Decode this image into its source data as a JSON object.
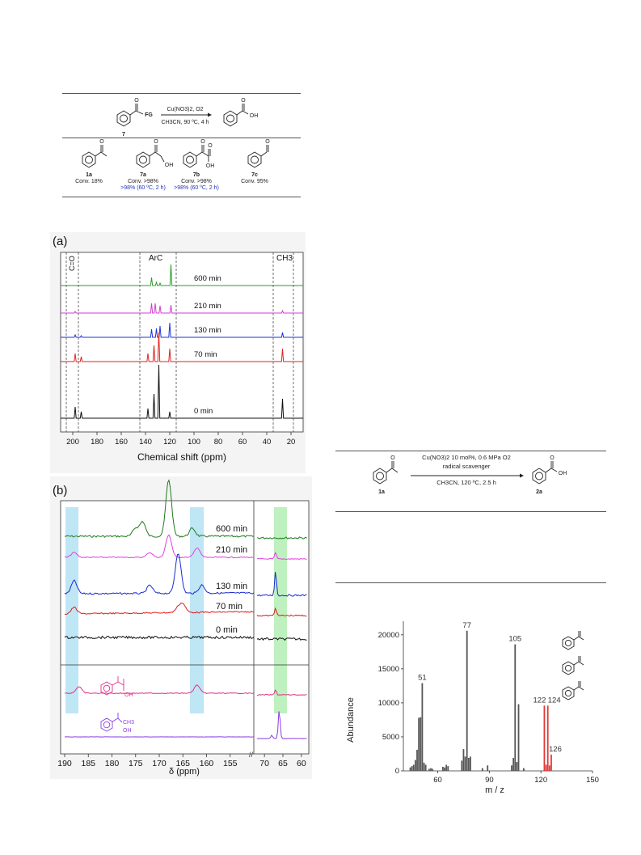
{
  "scheme1": {
    "reactant_label": "7",
    "fg": "FG",
    "reagents_top": "Cu(NO3)2, O2",
    "conditions": "CH3CN, 90 ºC, 4 h",
    "product_group": "OH",
    "compounds": [
      {
        "id": "1a",
        "conv": "Conv. 18%",
        "note": ""
      },
      {
        "id": "7a",
        "conv": "Conv. >98%",
        "note": ">98% (60 ºC, 2 h)"
      },
      {
        "id": "7b",
        "conv": "Conv. >98%",
        "note": ">98% (60 ºC, 2 h)"
      },
      {
        "id": "7c",
        "conv": "Conv. 95%",
        "note": ""
      }
    ],
    "substituents": [
      "OH",
      "OH",
      "O"
    ]
  },
  "scheme2": {
    "reactant_label": "1a",
    "product_label": "2a",
    "reagents_top": "Cu(NO3)2 10 mol%, 0.6 MPa O2",
    "reagents_mid": "radical scavenger",
    "conditions": "CH3CN, 120 ºC, 2.5 h",
    "product_group": "OH"
  },
  "panel_a": {
    "label": "(a)",
    "region_labels": [
      "C=O",
      "ArC",
      "CH3"
    ],
    "trace_labels": [
      "600 min",
      "210 min",
      "130 min",
      "70 min",
      "0 min"
    ],
    "colors": [
      "#2a9d2a",
      "#d23fd2",
      "#2233d9",
      "#e02222",
      "#111111"
    ],
    "x_ticks": [
      "200",
      "180",
      "160",
      "140",
      "120",
      "100",
      "80",
      "60",
      "40",
      "20"
    ],
    "xlabel": "Chemical shift (ppm)"
  },
  "panel_b": {
    "label": "(b)",
    "trace_labels": [
      "600 min",
      "210 min",
      "130 min",
      "70 min",
      "0 min"
    ],
    "colors": [
      "#1f7a1f",
      "#e040e0",
      "#1a2bd0",
      "#e01a1a",
      "#111111",
      "#e0308a",
      "#8a3de0"
    ],
    "x_ticks": [
      "190",
      "185",
      "180",
      "175",
      "170",
      "165",
      "160",
      "155",
      "70",
      "65",
      "60"
    ],
    "xlabel": "δ (ppm)",
    "ref_labels": [
      "OH",
      "OH",
      "CH3"
    ],
    "highlight_colors": [
      "#bfe6f5",
      "#bff0bf"
    ]
  },
  "chart_data": {
    "type": "bar",
    "xlabel": "m / z",
    "ylabel": "Abundance",
    "xlim": [
      40,
      150
    ],
    "ylim": [
      0,
      22000
    ],
    "x_ticks": [
      60,
      90,
      120,
      150
    ],
    "y_ticks": [
      0,
      5000,
      10000,
      15000,
      20000
    ],
    "series": [
      {
        "color": "#555555",
        "x": [
          44,
          45,
          46,
          47,
          48,
          49,
          50,
          51,
          52,
          53,
          55,
          56,
          57,
          63,
          64,
          65,
          66,
          74,
          75,
          76,
          77,
          78,
          79,
          86,
          89,
          103,
          104,
          105,
          106,
          107,
          110
        ],
        "values": [
          500,
          700,
          900,
          1600,
          3100,
          7800,
          7900,
          12900,
          1200,
          900,
          300,
          400,
          300,
          600,
          500,
          900,
          700,
          1500,
          3200,
          2100,
          20600,
          1900,
          2100,
          400,
          800,
          800,
          1900,
          18600,
          1300,
          9800,
          400
        ]
      },
      {
        "color": "#e03a3a",
        "x": [
          122,
          123,
          124,
          125,
          126
        ],
        "values": [
          9600,
          900,
          9600,
          800,
          2400
        ]
      }
    ],
    "peak_labels": [
      {
        "x": 51,
        "y": 12900,
        "text": "51"
      },
      {
        "x": 77,
        "y": 20600,
        "text": "77"
      },
      {
        "x": 105,
        "y": 18600,
        "text": "105"
      },
      {
        "x": 122,
        "y": 9600,
        "text": "122"
      },
      {
        "x": 124,
        "y": 9600,
        "text": "124"
      },
      {
        "x": 126,
        "y": 2400,
        "text": "126"
      }
    ]
  }
}
